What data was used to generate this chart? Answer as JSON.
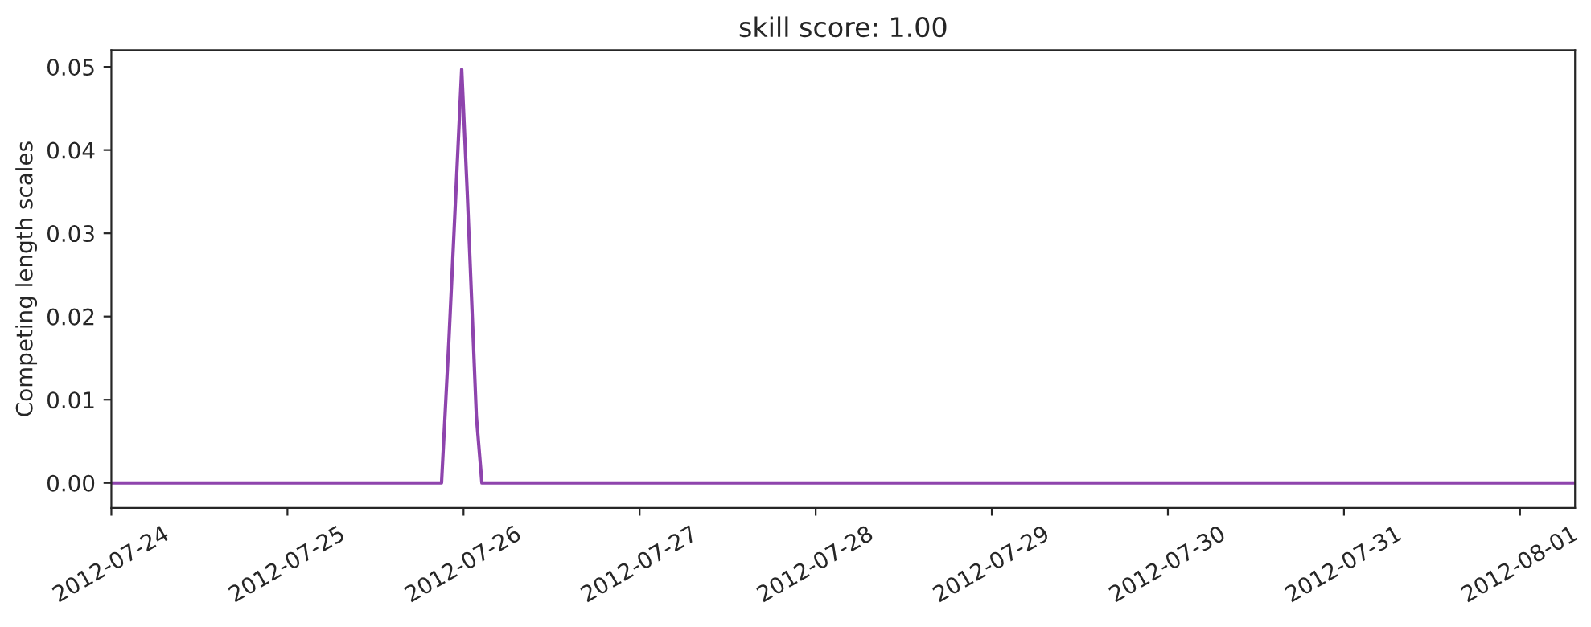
{
  "chart_data": {
    "type": "line",
    "title": "skill score: 1.00",
    "ylabel": "Competing length scales",
    "x": [
      "2012-07-24T00:00",
      "2012-07-25T21:00",
      "2012-07-25T22:00",
      "2012-07-25T23:45",
      "2012-07-26T00:30",
      "2012-07-26T01:45",
      "2012-07-26T02:30",
      "2012-08-01T07:30"
    ],
    "series": [
      {
        "color": "#8e44ad",
        "values": [
          0,
          0,
          0.017,
          0.0497,
          0.035,
          0.008,
          0,
          0
        ]
      }
    ],
    "xlim": [
      "2012-07-24",
      "2012-08-01T07:30"
    ],
    "xticks": [
      "2012-07-24",
      "2012-07-25",
      "2012-07-26",
      "2012-07-27",
      "2012-07-28",
      "2012-07-29",
      "2012-07-30",
      "2012-07-31",
      "2012-08-01"
    ],
    "ylim": [
      -0.003,
      0.052
    ],
    "yticks": [
      {
        "value": 0,
        "label": "0.00"
      },
      {
        "value": 0.01,
        "label": "0.01"
      },
      {
        "value": 0.02,
        "label": "0.02"
      },
      {
        "value": 0.03,
        "label": "0.03"
      },
      {
        "value": 0.04,
        "label": "0.04"
      },
      {
        "value": 0.05,
        "label": "0.05"
      }
    ],
    "grid": false
  }
}
